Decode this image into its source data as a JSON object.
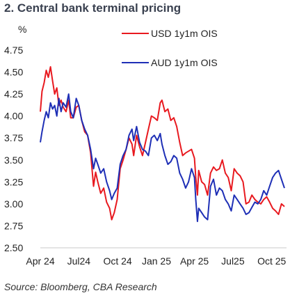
{
  "chart_data": {
    "type": "line",
    "title": "2.  Central bank terminal pricing",
    "ylabel": "%",
    "ylim": [
      2.5,
      4.75
    ],
    "yticks": [
      "4.75",
      "4.50",
      "4.25",
      "4.00",
      "3.75",
      "3.50",
      "3.25",
      "3.00",
      "2.75",
      "2.50"
    ],
    "xlim": [
      "2024-04-01",
      "2025-11-05"
    ],
    "xticks": [
      {
        "label": "Apr 24",
        "date": "2024-04-01"
      },
      {
        "label": "Jul24",
        "date": "2024-07-01"
      },
      {
        "label": "Oct 24",
        "date": "2024-10-01"
      },
      {
        "label": "Jan 25",
        "date": "2025-01-01"
      },
      {
        "label": "Apr 25",
        "date": "2025-04-01"
      },
      {
        "label": "Jul25",
        "date": "2025-07-01"
      },
      {
        "label": "Oct 25",
        "date": "2025-10-01"
      }
    ],
    "grid": false,
    "legend_position": "top-right",
    "source": "Source:  Bloomberg, CBA Research",
    "series": [
      {
        "name": "USD 1y1m OIS",
        "color": "#e8191f",
        "points": [
          [
            "2024-04-01",
            4.05
          ],
          [
            "2024-04-05",
            4.28
          ],
          [
            "2024-04-10",
            4.38
          ],
          [
            "2024-04-15",
            4.52
          ],
          [
            "2024-04-20",
            4.44
          ],
          [
            "2024-04-25",
            4.56
          ],
          [
            "2024-04-30",
            4.4
          ],
          [
            "2024-05-05",
            4.25
          ],
          [
            "2024-05-10",
            4.32
          ],
          [
            "2024-05-15",
            4.12
          ],
          [
            "2024-05-20",
            4.18
          ],
          [
            "2024-05-25",
            4.1
          ],
          [
            "2024-06-01",
            4.05
          ],
          [
            "2024-06-07",
            4.18
          ],
          [
            "2024-06-12",
            3.98
          ],
          [
            "2024-06-18",
            3.98
          ],
          [
            "2024-06-25",
            4.1
          ],
          [
            "2024-07-01",
            4.12
          ],
          [
            "2024-07-08",
            3.95
          ],
          [
            "2024-07-15",
            3.82
          ],
          [
            "2024-07-22",
            3.78
          ],
          [
            "2024-07-29",
            3.58
          ],
          [
            "2024-08-05",
            3.2
          ],
          [
            "2024-08-10",
            3.36
          ],
          [
            "2024-08-15",
            3.25
          ],
          [
            "2024-08-22",
            3.12
          ],
          [
            "2024-08-29",
            3.18
          ],
          [
            "2024-09-05",
            3.02
          ],
          [
            "2024-09-12",
            2.95
          ],
          [
            "2024-09-17",
            2.82
          ],
          [
            "2024-09-23",
            2.9
          ],
          [
            "2024-09-30",
            3.05
          ],
          [
            "2024-10-07",
            3.4
          ],
          [
            "2024-10-14",
            3.5
          ],
          [
            "2024-10-21",
            3.62
          ],
          [
            "2024-10-28",
            3.75
          ],
          [
            "2024-11-04",
            3.68
          ],
          [
            "2024-11-08",
            3.55
          ],
          [
            "2024-11-15",
            3.78
          ],
          [
            "2024-11-22",
            3.65
          ],
          [
            "2024-11-29",
            3.55
          ],
          [
            "2024-12-06",
            3.7
          ],
          [
            "2024-12-13",
            3.85
          ],
          [
            "2024-12-20",
            4.0
          ],
          [
            "2024-12-27",
            3.98
          ],
          [
            "2025-01-03",
            3.95
          ],
          [
            "2025-01-10",
            4.15
          ],
          [
            "2025-01-14",
            4.18
          ],
          [
            "2025-01-21",
            4.05
          ],
          [
            "2025-01-28",
            4.08
          ],
          [
            "2025-02-04",
            3.95
          ],
          [
            "2025-02-11",
            3.98
          ],
          [
            "2025-02-18",
            3.88
          ],
          [
            "2025-02-25",
            3.7
          ],
          [
            "2025-03-04",
            3.55
          ],
          [
            "2025-03-11",
            3.58
          ],
          [
            "2025-03-18",
            3.6
          ],
          [
            "2025-03-25",
            3.62
          ],
          [
            "2025-04-01",
            3.52
          ],
          [
            "2025-04-04",
            3.3
          ],
          [
            "2025-04-08",
            3.1
          ],
          [
            "2025-04-11",
            3.38
          ],
          [
            "2025-04-18",
            3.25
          ],
          [
            "2025-04-25",
            3.22
          ],
          [
            "2025-05-02",
            3.1
          ],
          [
            "2025-05-09",
            3.35
          ],
          [
            "2025-05-16",
            3.42
          ],
          [
            "2025-05-23",
            3.38
          ],
          [
            "2025-05-30",
            3.4
          ],
          [
            "2025-06-06",
            3.5
          ],
          [
            "2025-06-13",
            3.35
          ],
          [
            "2025-06-20",
            3.3
          ],
          [
            "2025-06-27",
            3.15
          ],
          [
            "2025-07-04",
            3.4
          ],
          [
            "2025-07-11",
            3.35
          ],
          [
            "2025-07-18",
            3.32
          ],
          [
            "2025-07-25",
            3.25
          ],
          [
            "2025-08-01",
            3.0
          ],
          [
            "2025-08-08",
            3.02
          ],
          [
            "2025-08-15",
            3.1
          ],
          [
            "2025-08-22",
            3.05
          ],
          [
            "2025-08-29",
            3.02
          ],
          [
            "2025-09-05",
            3.0
          ],
          [
            "2025-09-12",
            3.05
          ],
          [
            "2025-09-19",
            3.08
          ],
          [
            "2025-09-26",
            3.02
          ],
          [
            "2025-10-03",
            2.95
          ],
          [
            "2025-10-10",
            2.92
          ],
          [
            "2025-10-17",
            2.88
          ],
          [
            "2025-10-24",
            3.0
          ],
          [
            "2025-10-31",
            2.97
          ]
        ]
      },
      {
        "name": "AUD 1y1m OIS",
        "color": "#1e2fb6",
        "points": [
          [
            "2024-04-01",
            3.7
          ],
          [
            "2024-04-05",
            3.82
          ],
          [
            "2024-04-10",
            3.95
          ],
          [
            "2024-04-15",
            4.05
          ],
          [
            "2024-04-20",
            3.98
          ],
          [
            "2024-04-25",
            4.15
          ],
          [
            "2024-04-30",
            4.08
          ],
          [
            "2024-05-05",
            4.12
          ],
          [
            "2024-05-10",
            4.0
          ],
          [
            "2024-05-15",
            4.2
          ],
          [
            "2024-05-20",
            4.05
          ],
          [
            "2024-05-25",
            4.15
          ],
          [
            "2024-06-01",
            4.1
          ],
          [
            "2024-06-07",
            4.25
          ],
          [
            "2024-06-12",
            4.05
          ],
          [
            "2024-06-18",
            3.98
          ],
          [
            "2024-06-25",
            4.2
          ],
          [
            "2024-07-01",
            4.12
          ],
          [
            "2024-07-08",
            3.95
          ],
          [
            "2024-07-15",
            3.85
          ],
          [
            "2024-07-22",
            3.78
          ],
          [
            "2024-07-29",
            3.62
          ],
          [
            "2024-08-05",
            3.4
          ],
          [
            "2024-08-10",
            3.52
          ],
          [
            "2024-08-15",
            3.45
          ],
          [
            "2024-08-22",
            3.35
          ],
          [
            "2024-08-29",
            3.4
          ],
          [
            "2024-09-05",
            3.25
          ],
          [
            "2024-09-12",
            3.15
          ],
          [
            "2024-09-17",
            3.05
          ],
          [
            "2024-09-23",
            3.12
          ],
          [
            "2024-09-30",
            3.18
          ],
          [
            "2024-10-07",
            3.45
          ],
          [
            "2024-10-14",
            3.55
          ],
          [
            "2024-10-21",
            3.62
          ],
          [
            "2024-10-28",
            3.78
          ],
          [
            "2024-11-04",
            3.85
          ],
          [
            "2024-11-08",
            3.72
          ],
          [
            "2024-11-15",
            3.88
          ],
          [
            "2024-11-22",
            3.7
          ],
          [
            "2024-11-29",
            3.62
          ],
          [
            "2024-12-06",
            3.6
          ],
          [
            "2024-12-13",
            3.55
          ],
          [
            "2024-12-20",
            3.75
          ],
          [
            "2024-12-27",
            3.78
          ],
          [
            "2025-01-03",
            3.72
          ],
          [
            "2025-01-10",
            3.8
          ],
          [
            "2025-01-14",
            3.68
          ],
          [
            "2025-01-21",
            3.55
          ],
          [
            "2025-01-28",
            3.45
          ],
          [
            "2025-02-04",
            3.48
          ],
          [
            "2025-02-11",
            3.55
          ],
          [
            "2025-02-18",
            3.52
          ],
          [
            "2025-02-25",
            3.35
          ],
          [
            "2025-03-04",
            3.28
          ],
          [
            "2025-03-11",
            3.18
          ],
          [
            "2025-03-18",
            3.25
          ],
          [
            "2025-03-25",
            3.4
          ],
          [
            "2025-04-01",
            3.3
          ],
          [
            "2025-04-04",
            3.05
          ],
          [
            "2025-04-08",
            2.8
          ],
          [
            "2025-04-11",
            2.95
          ],
          [
            "2025-04-18",
            2.9
          ],
          [
            "2025-04-25",
            2.85
          ],
          [
            "2025-05-02",
            2.82
          ],
          [
            "2025-05-09",
            3.2
          ],
          [
            "2025-05-16",
            3.28
          ],
          [
            "2025-05-23",
            3.1
          ],
          [
            "2025-05-30",
            3.18
          ],
          [
            "2025-06-06",
            3.15
          ],
          [
            "2025-06-13",
            3.05
          ],
          [
            "2025-06-20",
            3.0
          ],
          [
            "2025-06-27",
            2.92
          ],
          [
            "2025-07-04",
            3.1
          ],
          [
            "2025-07-11",
            3.05
          ],
          [
            "2025-07-18",
            3.0
          ],
          [
            "2025-07-25",
            2.95
          ],
          [
            "2025-08-01",
            2.88
          ],
          [
            "2025-08-08",
            2.9
          ],
          [
            "2025-08-15",
            2.96
          ],
          [
            "2025-08-22",
            3.02
          ],
          [
            "2025-08-29",
            3.0
          ],
          [
            "2025-09-05",
            3.05
          ],
          [
            "2025-09-12",
            3.15
          ],
          [
            "2025-09-19",
            3.1
          ],
          [
            "2025-09-26",
            3.2
          ],
          [
            "2025-10-03",
            3.3
          ],
          [
            "2025-10-10",
            3.35
          ],
          [
            "2025-10-17",
            3.38
          ],
          [
            "2025-10-24",
            3.28
          ],
          [
            "2025-10-31",
            3.18
          ]
        ]
      }
    ]
  }
}
